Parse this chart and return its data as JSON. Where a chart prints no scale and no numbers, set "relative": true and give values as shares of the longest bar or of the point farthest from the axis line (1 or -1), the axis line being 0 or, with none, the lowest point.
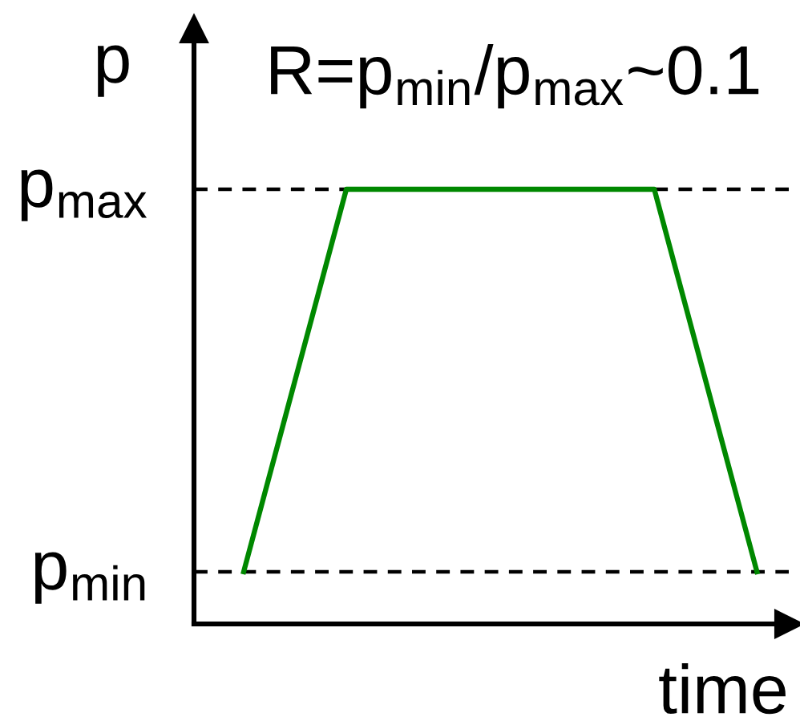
{
  "chart_data": {
    "type": "line",
    "relative": true,
    "ylabel": "p",
    "xlabel": "time",
    "annotations": [
      "R=p$_{min}$/p$_{max}$~0.1"
    ],
    "categories": [
      null,
      null,
      null,
      null,
      null,
      null
    ],
    "series": [
      {
        "color": "#008800",
        "values": [
          0.12,
          1,
          1,
          1,
          1,
          0.12
        ]
      }
    ],
    "ref_lines": [
      {
        "axis": "y",
        "value": 1,
        "label": "p$_{max}$",
        "line_style": "dashed",
        "color": "#000000"
      },
      {
        "axis": "y",
        "value": 0.12,
        "label": "p$_{min}$",
        "line_style": "dashed",
        "color": "#000000"
      }
    ]
  }
}
